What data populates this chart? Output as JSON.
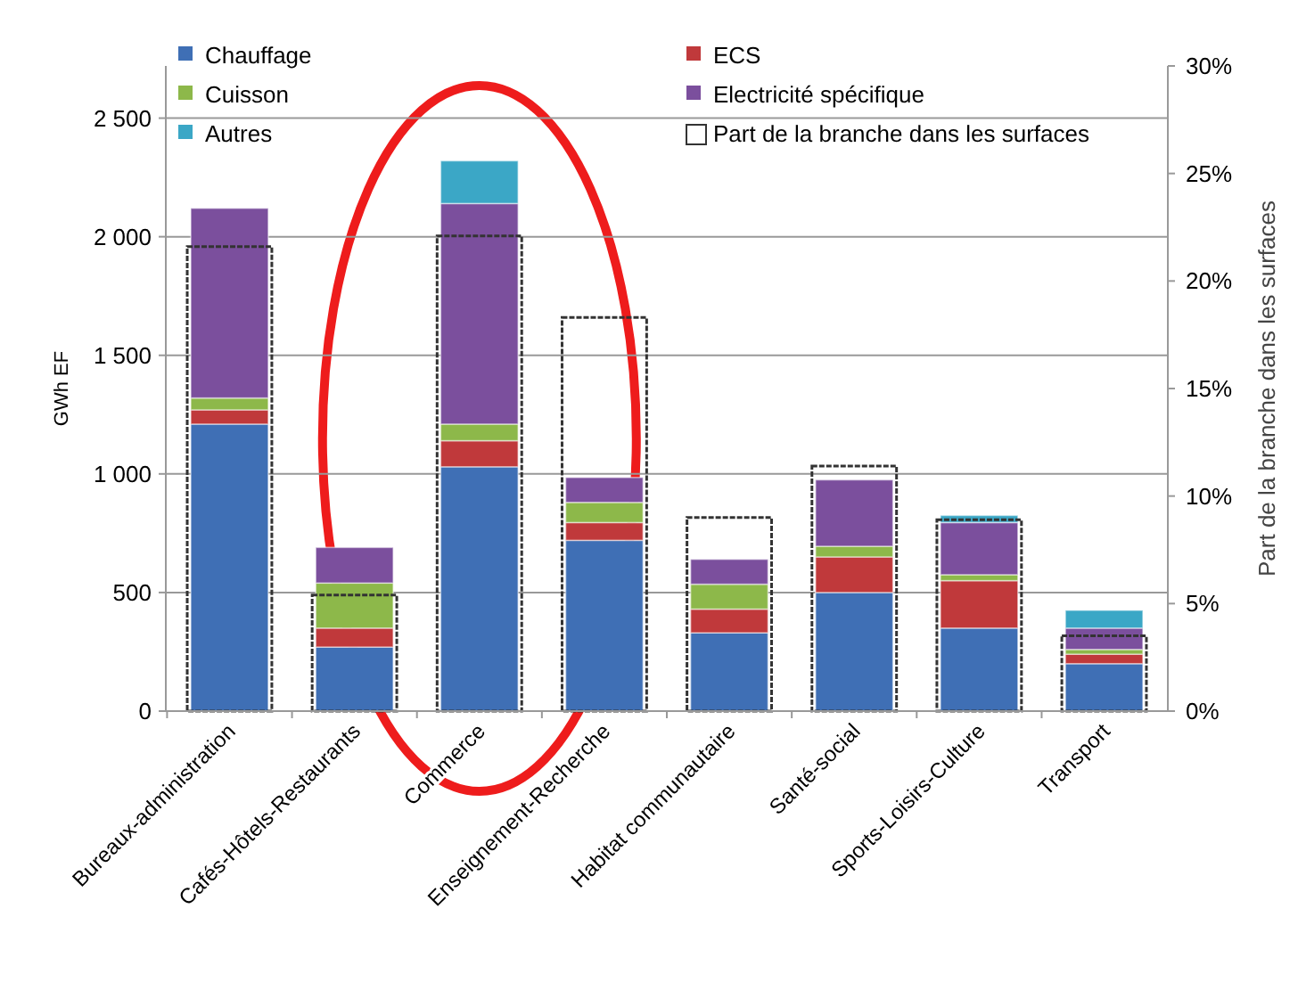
{
  "chart_data": {
    "type": "bar",
    "stacked": true,
    "ylabel": "GWh EF",
    "y2label": "Part de la branche dans les surfaces",
    "categories": [
      "Bureaux-administration",
      "Cafés-Hôtels-Restaurants",
      "Commerce",
      "Enseignement-Recherche",
      "Habitat communautaire",
      "Santé-social",
      "Sports-Loisirs-Culture",
      "Transport"
    ],
    "series": [
      {
        "name": "Chauffage",
        "color": "#3f6fb5",
        "values": [
          1210,
          270,
          1030,
          720,
          330,
          500,
          350,
          200
        ]
      },
      {
        "name": "ECS",
        "color": "#c0393b",
        "values": [
          60,
          80,
          110,
          75,
          100,
          150,
          200,
          40
        ]
      },
      {
        "name": "Cuisson",
        "color": "#8db84a",
        "values": [
          50,
          190,
          70,
          85,
          105,
          45,
          25,
          20
        ]
      },
      {
        "name": "Electricité spécifique",
        "color": "#7b4f9d",
        "values": [
          800,
          150,
          930,
          105,
          105,
          280,
          220,
          90
        ]
      },
      {
        "name": "Autres",
        "color": "#3ba7c6",
        "values": [
          0,
          0,
          180,
          0,
          0,
          0,
          30,
          75
        ]
      },
      {
        "name": "Part de la branche dans les surfaces",
        "color": "#333333",
        "axis": "y2",
        "values": [
          21.6,
          5.4,
          22.1,
          18.3,
          9.0,
          11.4,
          8.9,
          3.5
        ]
      }
    ],
    "ylim": [
      0,
      2720
    ],
    "yticks": [
      0,
      500,
      {
        "value": 1000,
        "label": "1 000"
      },
      {
        "value": 1500,
        "label": "1 500"
      },
      {
        "value": 2000,
        "label": "2 000"
      },
      {
        "value": 2500,
        "label": "2 500"
      }
    ],
    "y2lim": [
      0,
      30
    ],
    "y2ticks": [
      {
        "value": 0,
        "label": "0%"
      },
      {
        "value": 5,
        "label": "5%"
      },
      {
        "value": 10,
        "label": "10%"
      },
      {
        "value": 15,
        "label": "15%"
      },
      {
        "value": 20,
        "label": "20%"
      },
      {
        "value": 25,
        "label": "25%"
      },
      {
        "value": 30,
        "label": "30%"
      }
    ],
    "grid": "y",
    "legend": "top"
  }
}
